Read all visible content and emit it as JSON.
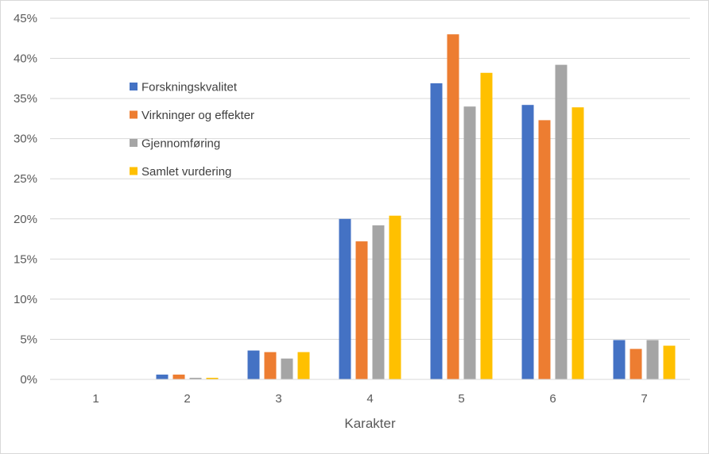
{
  "chart_data": {
    "type": "bar",
    "xlabel": "Karakter",
    "ylabel": "",
    "ylim": [
      0,
      45
    ],
    "y_ticks": [
      "0%",
      "5%",
      "10%",
      "15%",
      "20%",
      "25%",
      "30%",
      "35%",
      "40%",
      "45%"
    ],
    "categories": [
      "1",
      "2",
      "3",
      "4",
      "5",
      "6",
      "7"
    ],
    "grid": true,
    "legend_position": "top-left",
    "series": [
      {
        "name": "Forskningskvalitet",
        "color": "#4472C4",
        "values": [
          0,
          0.6,
          3.6,
          20.0,
          36.9,
          34.2,
          4.9
        ]
      },
      {
        "name": "Virkninger og effekter",
        "color": "#ED7D31",
        "values": [
          0,
          0.6,
          3.4,
          17.2,
          43.0,
          32.3,
          3.8
        ]
      },
      {
        "name": "Gjennomføring",
        "color": "#A5A5A5",
        "values": [
          0,
          0.2,
          2.6,
          19.2,
          34.0,
          39.2,
          4.9
        ]
      },
      {
        "name": "Samlet vurdering",
        "color": "#FFC000",
        "values": [
          0,
          0.2,
          3.4,
          20.4,
          38.2,
          33.9,
          4.2
        ]
      }
    ]
  }
}
